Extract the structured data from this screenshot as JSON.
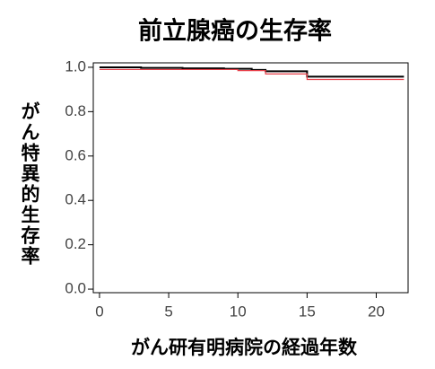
{
  "chart_data": {
    "type": "line",
    "step": true,
    "title": "前立腺癌の生存率",
    "ylabel": "がん特異的生存率",
    "xlabel": "がん研有明病院の経過年数",
    "xlim": [
      -0.45,
      22.3
    ],
    "xticks": [
      0,
      5,
      10,
      15,
      20
    ],
    "ylim": [
      -0.016,
      1.02
    ],
    "yticks": [
      {
        "value": 0,
        "label": "0.0"
      },
      {
        "value": 0.2,
        "label": "0.2"
      },
      {
        "value": 0.4,
        "label": "0.4"
      },
      {
        "value": 0.6,
        "label": "0.6"
      },
      {
        "value": 0.8,
        "label": "0.8"
      },
      {
        "value": 1,
        "label": "1.0"
      }
    ],
    "series": [
      {
        "color": "#000000",
        "x": [
          0,
          3,
          6,
          9,
          11,
          12,
          15,
          22
        ],
        "values": [
          1.0,
          0.997,
          0.995,
          0.993,
          0.988,
          0.982,
          0.958,
          0.958
        ]
      },
      {
        "color": "#e8404a",
        "x": [
          0,
          10,
          12,
          15,
          22
        ],
        "values": [
          0.99,
          0.985,
          0.97,
          0.945,
          0.945
        ]
      }
    ]
  }
}
